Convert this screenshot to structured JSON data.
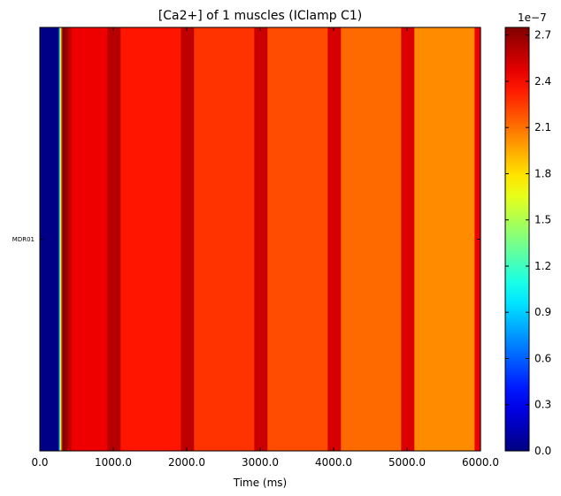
{
  "chart_data": {
    "type": "heatmap",
    "title": "[Ca2+] of 1 muscles (IClamp C1)",
    "xlabel": "Time (ms)",
    "ylabel": "",
    "rows": [
      "MDR01"
    ],
    "xlim": [
      0,
      6000
    ],
    "xticks": [
      {
        "value": 0,
        "label": "0.0"
      },
      {
        "value": 1000,
        "label": "1000.0"
      },
      {
        "value": 2000,
        "label": "2000.0"
      },
      {
        "value": 3000,
        "label": "3000.0"
      },
      {
        "value": 4000,
        "label": "4000.0"
      },
      {
        "value": 5000,
        "label": "5000.0"
      },
      {
        "value": 6000,
        "label": "6000.0"
      }
    ],
    "colorbar": {
      "min": 0.0,
      "max": 2.75,
      "colormap": "jet",
      "scale_label": "1e−7",
      "ticks": [
        {
          "value": 0.0,
          "label": "0.0"
        },
        {
          "value": 0.3,
          "label": "0.3"
        },
        {
          "value": 0.6,
          "label": "0.6"
        },
        {
          "value": 0.9,
          "label": "0.9"
        },
        {
          "value": 1.2,
          "label": "1.2"
        },
        {
          "value": 1.5,
          "label": "1.5"
        },
        {
          "value": 1.8,
          "label": "1.8"
        },
        {
          "value": 2.1,
          "label": "2.1"
        },
        {
          "value": 2.4,
          "label": "2.4"
        },
        {
          "value": 2.7,
          "label": "2.7"
        }
      ]
    },
    "segments": [
      {
        "start": 0,
        "end": 260,
        "value": 0.02
      },
      {
        "start": 260,
        "end": 275,
        "value": 0.9
      },
      {
        "start": 275,
        "end": 290,
        "value": 1.6
      },
      {
        "start": 290,
        "end": 305,
        "value": 2.2
      },
      {
        "start": 305,
        "end": 340,
        "value": 2.75
      },
      {
        "start": 340,
        "end": 380,
        "value": 2.68
      },
      {
        "start": 380,
        "end": 430,
        "value": 2.58
      },
      {
        "start": 430,
        "end": 920,
        "value": 2.45
      },
      {
        "start": 920,
        "end": 1100,
        "value": 2.6
      },
      {
        "start": 1100,
        "end": 1920,
        "value": 2.35
      },
      {
        "start": 1920,
        "end": 2100,
        "value": 2.58
      },
      {
        "start": 2100,
        "end": 2920,
        "value": 2.27
      },
      {
        "start": 2920,
        "end": 3100,
        "value": 2.55
      },
      {
        "start": 3100,
        "end": 3920,
        "value": 2.2
      },
      {
        "start": 3920,
        "end": 4100,
        "value": 2.52
      },
      {
        "start": 4100,
        "end": 4920,
        "value": 2.12
      },
      {
        "start": 4920,
        "end": 5100,
        "value": 2.5
      },
      {
        "start": 5100,
        "end": 5920,
        "value": 2.03
      },
      {
        "start": 5920,
        "end": 6000,
        "value": 2.45
      }
    ]
  }
}
